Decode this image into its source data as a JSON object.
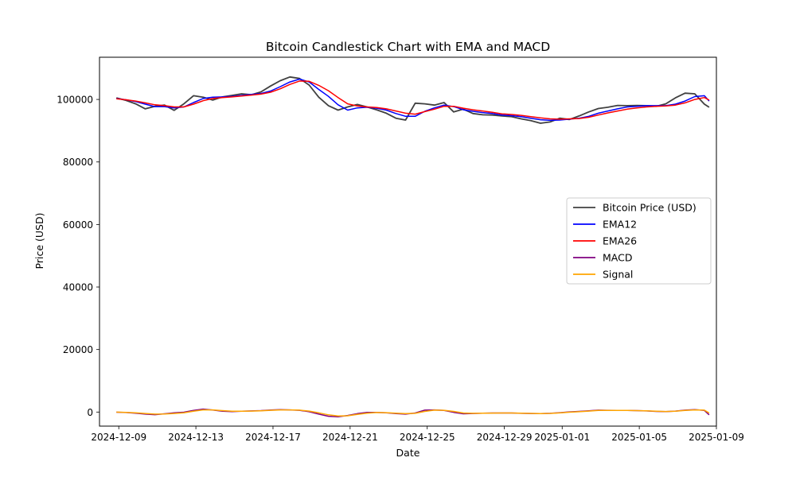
{
  "chart_data": {
    "type": "line",
    "title": "Bitcoin Candlestick Chart with EMA and MACD",
    "xlabel": "Date",
    "ylabel": "Price (USD)",
    "x_range": [
      "2024-12-08",
      "2025-01-09"
    ],
    "ylim": [
      -4500,
      113500
    ],
    "grid": false,
    "legend_position": "right",
    "x_ticks": [
      "2024-12-09",
      "2024-12-13",
      "2024-12-17",
      "2024-12-21",
      "2024-12-25",
      "2024-12-29",
      "2025-01-01",
      "2025-01-05",
      "2025-01-09"
    ],
    "x_tick_dates": [
      "2024-12-09",
      "2024-12-13",
      "2024-12-17",
      "2024-12-21",
      "2024-12-25",
      "2024-12-29",
      "2025-01-01",
      "2025-01-05",
      "2025-01-09"
    ],
    "y_ticks": [
      0,
      20000,
      40000,
      60000,
      80000,
      100000
    ],
    "x": [
      "2024-12-08T21:00",
      "2024-12-09T09:00",
      "2024-12-09T21:00",
      "2024-12-10T09:00",
      "2024-12-10T21:00",
      "2024-12-11T09:00",
      "2024-12-11T21:00",
      "2024-12-12T09:00",
      "2024-12-12T21:00",
      "2024-12-13T09:00",
      "2024-12-13T21:00",
      "2024-12-14T09:00",
      "2024-12-14T21:00",
      "2024-12-15T09:00",
      "2024-12-15T21:00",
      "2024-12-16T09:00",
      "2024-12-16T21:00",
      "2024-12-17T09:00",
      "2024-12-17T21:00",
      "2024-12-18T09:00",
      "2024-12-18T21:00",
      "2024-12-19T09:00",
      "2024-12-19T21:00",
      "2024-12-20T09:00",
      "2024-12-20T21:00",
      "2024-12-21T09:00",
      "2024-12-21T21:00",
      "2024-12-22T09:00",
      "2024-12-22T21:00",
      "2024-12-23T09:00",
      "2024-12-23T21:00",
      "2024-12-24T09:00",
      "2024-12-24T21:00",
      "2024-12-25T09:00",
      "2024-12-25T21:00",
      "2024-12-26T09:00",
      "2024-12-26T21:00",
      "2024-12-27T09:00",
      "2024-12-27T21:00",
      "2024-12-28T09:00",
      "2024-12-28T21:00",
      "2024-12-29T09:00",
      "2024-12-29T21:00",
      "2024-12-30T09:00",
      "2024-12-30T21:00",
      "2024-12-31T09:00",
      "2024-12-31T21:00",
      "2025-01-01T09:00",
      "2025-01-01T21:00",
      "2025-01-02T09:00",
      "2025-01-02T21:00",
      "2025-01-03T09:00",
      "2025-01-03T21:00",
      "2025-01-04T09:00",
      "2025-01-04T21:00",
      "2025-01-05T09:00",
      "2025-01-05T21:00",
      "2025-01-06T09:00",
      "2025-01-06T21:00",
      "2025-01-07T09:00",
      "2025-01-07T21:00",
      "2025-01-08T09:00",
      "2025-01-08T15:00"
    ],
    "series": [
      {
        "name": "Bitcoin Price (USD)",
        "color": "#404040",
        "values": [
          100500,
          99700,
          98600,
          97000,
          97800,
          98200,
          96500,
          98600,
          101200,
          100700,
          99800,
          100800,
          101300,
          101800,
          101500,
          102400,
          104300,
          106000,
          107200,
          106700,
          104600,
          100700,
          98000,
          96600,
          97600,
          98400,
          97600,
          96700,
          95600,
          94000,
          93400,
          98800,
          98600,
          98200,
          99000,
          96000,
          96900,
          95500,
          95100,
          95000,
          94700,
          94500,
          93800,
          93200,
          92400,
          92800,
          94000,
          93600,
          94700,
          96000,
          97100,
          97500,
          98100,
          98000,
          98100,
          98000,
          97800,
          98600,
          100500,
          102000,
          101800,
          98500,
          97500
        ]
      },
      {
        "name": "EMA12",
        "color": "#0000ff",
        "values": [
          100300,
          99900,
          99300,
          98500,
          97700,
          97700,
          97300,
          97600,
          99000,
          100300,
          100700,
          100800,
          101000,
          101300,
          101600,
          101900,
          102700,
          104100,
          105600,
          106500,
          105600,
          103200,
          101000,
          98300,
          96600,
          97300,
          97500,
          97200,
          96600,
          95500,
          94600,
          94600,
          96200,
          97300,
          98200,
          97700,
          96700,
          96200,
          95800,
          95500,
          95000,
          94800,
          94500,
          94000,
          93500,
          93300,
          93400,
          93700,
          94000,
          94600,
          95600,
          96300,
          97000,
          97600,
          97800,
          98000,
          98000,
          98000,
          98500,
          99500,
          100900,
          101200,
          99500
        ]
      },
      {
        "name": "EMA26",
        "color": "#ff0000",
        "values": [
          100200,
          99900,
          99500,
          98900,
          98300,
          98000,
          97600,
          97600,
          98500,
          99600,
          100300,
          100600,
          100800,
          101100,
          101400,
          101700,
          102300,
          103400,
          104800,
          105900,
          105800,
          104500,
          102800,
          100600,
          98600,
          97900,
          97600,
          97400,
          97000,
          96300,
          95600,
          95300,
          96100,
          96900,
          97800,
          97800,
          97200,
          96700,
          96300,
          95900,
          95400,
          95200,
          94900,
          94500,
          94100,
          93800,
          93700,
          93800,
          93900,
          94300,
          95000,
          95700,
          96300,
          96900,
          97300,
          97600,
          97800,
          97900,
          98200,
          98900,
          100000,
          100600,
          99800
        ]
      },
      {
        "name": "MACD",
        "color": "#800080",
        "values": [
          -50,
          -150,
          -350,
          -650,
          -850,
          -550,
          -250,
          -50,
          500,
          950,
          650,
          250,
          150,
          250,
          350,
          450,
          650,
          800,
          700,
          550,
          100,
          -650,
          -1350,
          -1500,
          -1100,
          -500,
          -100,
          -100,
          -250,
          -500,
          -650,
          -300,
          600,
          700,
          500,
          -100,
          -550,
          -450,
          -350,
          -300,
          -300,
          -300,
          -400,
          -450,
          -500,
          -400,
          -200,
          50,
          200,
          400,
          600,
          550,
          500,
          500,
          450,
          350,
          200,
          150,
          300,
          600,
          800,
          500,
          -900
        ]
      },
      {
        "name": "Signal",
        "color": "#ffa500",
        "values": [
          -30,
          -100,
          -250,
          -450,
          -650,
          -600,
          -450,
          -250,
          250,
          700,
          700,
          450,
          250,
          250,
          300,
          400,
          550,
          700,
          700,
          600,
          300,
          -250,
          -900,
          -1250,
          -1200,
          -750,
          -350,
          -150,
          -200,
          -350,
          -500,
          -400,
          200,
          600,
          550,
          200,
          -300,
          -400,
          -380,
          -330,
          -310,
          -300,
          -350,
          -420,
          -470,
          -420,
          -280,
          -50,
          100,
          300,
          500,
          530,
          510,
          500,
          470,
          380,
          250,
          180,
          250,
          500,
          700,
          600,
          -300
        ]
      }
    ]
  }
}
